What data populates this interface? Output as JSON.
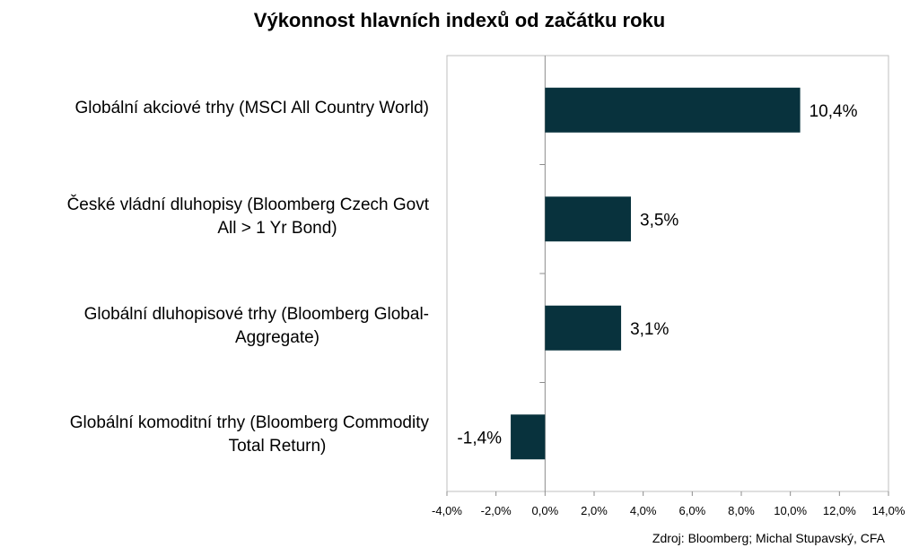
{
  "title": "Výkonnost hlavních indexů od začátku roku",
  "source": "Zdroj: Bloomberg; Michal Stupavský, CFA",
  "colors": {
    "bar": "#08323d",
    "axis": "#8c8c8c",
    "frame": "#bfbfbf"
  },
  "chart_data": {
    "type": "bar",
    "orientation": "horizontal",
    "title": "Výkonnost hlavních indexů od začátku roku",
    "categories": [
      "Globální akciové trhy (MSCI All Country World)",
      "České vládní dluhopisy (Bloomberg Czech Govt All > 1 Yr Bond)",
      "Globální dluhopisové trhy (Bloomberg Global-Aggregate)",
      "Globální komoditní trhy (Bloomberg Commodity Total Return)"
    ],
    "category_lines": [
      [
        "Globální akciové trhy (MSCI All Country World)"
      ],
      [
        "České vládní dluhopisy (Bloomberg Czech Govt",
        "All > 1 Yr Bond)"
      ],
      [
        "Globální dluhopisové trhy (Bloomberg Global-",
        "Aggregate)"
      ],
      [
        "Globální komoditní trhy (Bloomberg Commodity",
        "Total Return)"
      ]
    ],
    "values": [
      10.4,
      3.5,
      3.1,
      -1.4
    ],
    "value_labels": [
      "10,4%",
      "3,5%",
      "3,1%",
      "-1,4%"
    ],
    "xlim": [
      -4,
      14
    ],
    "xticks": [
      -4,
      -2,
      0,
      2,
      4,
      6,
      8,
      10,
      12,
      14
    ],
    "xtick_labels": [
      "-4,0%",
      "-2,0%",
      "0,0%",
      "2,0%",
      "4,0%",
      "6,0%",
      "8,0%",
      "10,0%",
      "12,0%",
      "14,0%"
    ],
    "grid": false,
    "legend": "none"
  }
}
